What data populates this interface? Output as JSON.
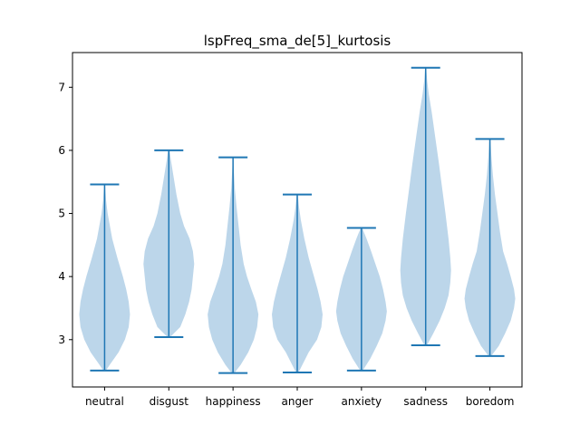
{
  "chart_data": {
    "type": "violin",
    "title": "lspFreq_sma_de[5]_kurtosis",
    "xlabel": "",
    "ylabel": "",
    "categories": [
      "neutral",
      "disgust",
      "happiness",
      "anger",
      "anxiety",
      "sadness",
      "boredom"
    ],
    "yticks": [
      3,
      4,
      5,
      6,
      7
    ],
    "ylim": [
      2.25,
      7.55
    ],
    "xlim": [
      0.5,
      7.5
    ],
    "colors": {
      "body": "#bcd6ea",
      "line": "#1f77b4",
      "axis": "#000000"
    },
    "series": [
      {
        "category": "neutral",
        "min": 2.51,
        "max": 5.46,
        "profile": [
          [
            2.51,
            0.05
          ],
          [
            2.6,
            0.2
          ],
          [
            2.8,
            0.55
          ],
          [
            3.0,
            0.8
          ],
          [
            3.2,
            0.95
          ],
          [
            3.4,
            1.0
          ],
          [
            3.6,
            0.95
          ],
          [
            3.8,
            0.85
          ],
          [
            4.0,
            0.72
          ],
          [
            4.3,
            0.5
          ],
          [
            4.6,
            0.3
          ],
          [
            5.0,
            0.12
          ],
          [
            5.2,
            0.06
          ],
          [
            5.46,
            0.02
          ]
        ]
      },
      {
        "category": "disgust",
        "min": 3.04,
        "max": 6.0,
        "profile": [
          [
            3.04,
            0.05
          ],
          [
            3.2,
            0.45
          ],
          [
            3.4,
            0.65
          ],
          [
            3.6,
            0.8
          ],
          [
            3.8,
            0.9
          ],
          [
            4.0,
            0.95
          ],
          [
            4.2,
            1.0
          ],
          [
            4.4,
            0.95
          ],
          [
            4.6,
            0.82
          ],
          [
            4.8,
            0.6
          ],
          [
            5.0,
            0.45
          ],
          [
            5.3,
            0.3
          ],
          [
            5.6,
            0.18
          ],
          [
            5.85,
            0.08
          ],
          [
            6.0,
            0.03
          ]
        ]
      },
      {
        "category": "happiness",
        "min": 2.47,
        "max": 5.89,
        "profile": [
          [
            2.47,
            0.05
          ],
          [
            2.6,
            0.3
          ],
          [
            2.8,
            0.6
          ],
          [
            3.0,
            0.82
          ],
          [
            3.2,
            0.95
          ],
          [
            3.4,
            1.0
          ],
          [
            3.6,
            0.9
          ],
          [
            3.8,
            0.72
          ],
          [
            4.0,
            0.55
          ],
          [
            4.2,
            0.42
          ],
          [
            4.5,
            0.3
          ],
          [
            4.8,
            0.22
          ],
          [
            5.1,
            0.14
          ],
          [
            5.4,
            0.07
          ],
          [
            5.7,
            0.03
          ],
          [
            5.89,
            0.01
          ]
        ]
      },
      {
        "category": "anger",
        "min": 2.48,
        "max": 5.3,
        "profile": [
          [
            2.48,
            0.05
          ],
          [
            2.6,
            0.2
          ],
          [
            2.8,
            0.45
          ],
          [
            3.0,
            0.78
          ],
          [
            3.2,
            0.95
          ],
          [
            3.4,
            1.0
          ],
          [
            3.6,
            0.92
          ],
          [
            3.8,
            0.8
          ],
          [
            4.0,
            0.66
          ],
          [
            4.3,
            0.45
          ],
          [
            4.6,
            0.28
          ],
          [
            4.9,
            0.14
          ],
          [
            5.1,
            0.07
          ],
          [
            5.3,
            0.02
          ]
        ]
      },
      {
        "category": "anxiety",
        "min": 2.51,
        "max": 4.77,
        "profile": [
          [
            2.51,
            0.05
          ],
          [
            2.7,
            0.35
          ],
          [
            2.9,
            0.6
          ],
          [
            3.1,
            0.82
          ],
          [
            3.3,
            0.95
          ],
          [
            3.45,
            1.0
          ],
          [
            3.6,
            0.95
          ],
          [
            3.8,
            0.85
          ],
          [
            4.0,
            0.72
          ],
          [
            4.2,
            0.55
          ],
          [
            4.4,
            0.38
          ],
          [
            4.6,
            0.2
          ],
          [
            4.77,
            0.03
          ]
        ]
      },
      {
        "category": "sadness",
        "min": 2.91,
        "max": 7.31,
        "profile": [
          [
            2.91,
            0.05
          ],
          [
            3.1,
            0.3
          ],
          [
            3.3,
            0.55
          ],
          [
            3.5,
            0.75
          ],
          [
            3.7,
            0.9
          ],
          [
            3.9,
            0.97
          ],
          [
            4.1,
            1.0
          ],
          [
            4.3,
            0.97
          ],
          [
            4.6,
            0.9
          ],
          [
            5.0,
            0.78
          ],
          [
            5.4,
            0.65
          ],
          [
            5.8,
            0.52
          ],
          [
            6.2,
            0.38
          ],
          [
            6.6,
            0.24
          ],
          [
            6.9,
            0.12
          ],
          [
            7.1,
            0.06
          ],
          [
            7.31,
            0.02
          ]
        ]
      },
      {
        "category": "boredom",
        "min": 2.74,
        "max": 6.18,
        "profile": [
          [
            2.74,
            0.05
          ],
          [
            2.9,
            0.35
          ],
          [
            3.1,
            0.6
          ],
          [
            3.3,
            0.82
          ],
          [
            3.5,
            0.95
          ],
          [
            3.65,
            1.0
          ],
          [
            3.8,
            0.95
          ],
          [
            4.0,
            0.82
          ],
          [
            4.2,
            0.68
          ],
          [
            4.4,
            0.52
          ],
          [
            4.7,
            0.4
          ],
          [
            5.0,
            0.3
          ],
          [
            5.3,
            0.2
          ],
          [
            5.6,
            0.12
          ],
          [
            5.9,
            0.06
          ],
          [
            6.18,
            0.02
          ]
        ]
      }
    ]
  }
}
